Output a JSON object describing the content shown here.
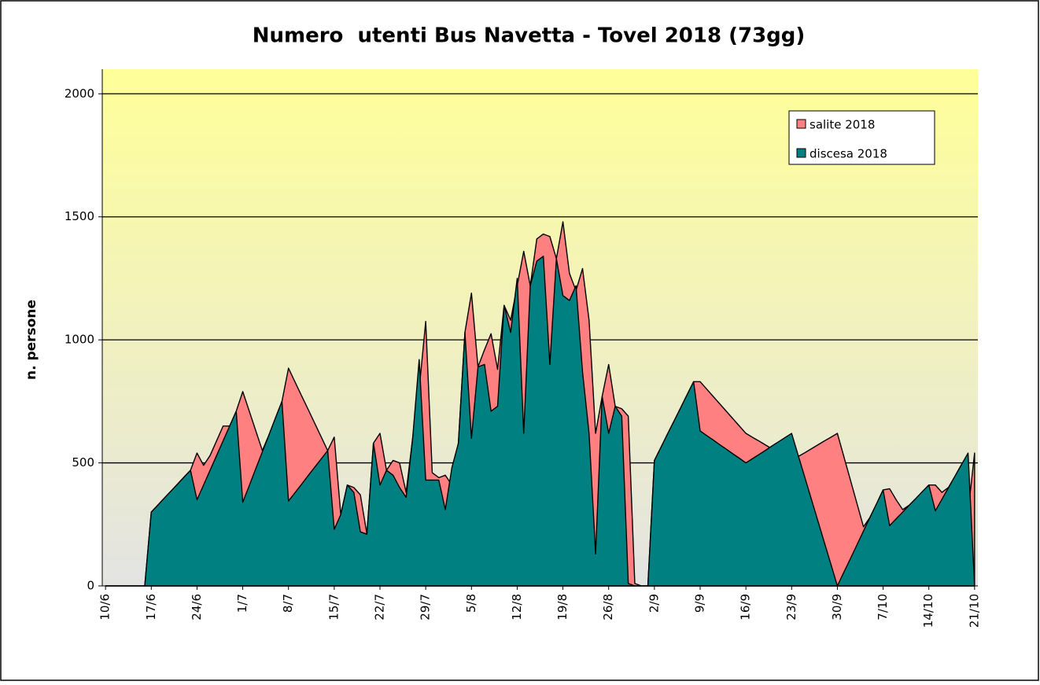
{
  "chart_data": {
    "type": "area",
    "title": "Numero  utenti Bus Navetta - Tovel 2018 (73gg)",
    "y_label": "n. persone",
    "categories": [
      "10/6",
      null,
      null,
      null,
      null,
      null,
      null,
      "17/6",
      null,
      null,
      null,
      null,
      null,
      null,
      "24/6",
      null,
      null,
      null,
      null,
      null,
      null,
      "1/7",
      null,
      null,
      null,
      null,
      null,
      null,
      "8/7",
      null,
      null,
      null,
      null,
      null,
      null,
      "15/7",
      null,
      null,
      null,
      null,
      null,
      null,
      "22/7",
      null,
      null,
      null,
      null,
      null,
      null,
      "29/7",
      null,
      null,
      null,
      null,
      null,
      null,
      "5/8",
      null,
      null,
      null,
      null,
      null,
      null,
      "12/8",
      null,
      null,
      null,
      null,
      null,
      null,
      "19/8",
      null,
      null,
      null,
      null,
      null,
      null,
      "26/8",
      null,
      null,
      null,
      null,
      null,
      null,
      "2/9",
      null,
      null,
      null,
      null,
      null,
      null,
      "9/9",
      null,
      null,
      null,
      null,
      null,
      null,
      "16/9",
      null,
      null,
      null,
      null,
      null,
      null,
      "23/9",
      null,
      null,
      null,
      null,
      null,
      null,
      "30/9",
      null,
      null,
      null,
      null,
      null,
      null,
      "7/10",
      null,
      null,
      null,
      null,
      null,
      null,
      "14/10",
      null,
      null,
      null,
      null,
      null,
      null,
      "21/10"
    ],
    "series": [
      {
        "name": "salite 2018",
        "color": "#ff8080",
        "values": [
          0,
          0,
          0,
          0,
          0,
          0,
          0,
          300,
          328,
          357,
          385,
          413,
          442,
          470,
          540,
          490,
          530,
          590,
          650,
          650,
          710,
          790,
          710,
          630,
          550,
          613,
          682,
          750,
          885,
          829,
          773,
          718,
          662,
          606,
          550,
          605,
          290,
          410,
          400,
          370,
          210,
          580,
          620,
          470,
          510,
          500,
          380,
          600,
          800,
          1075,
          460,
          440,
          450,
          410,
          580,
          1030,
          1190,
          890,
          960,
          1025,
          880,
          1140,
          1080,
          1220,
          1360,
          1220,
          1410,
          1430,
          1420,
          1330,
          1480,
          1270,
          1200,
          1290,
          1080,
          620,
          770,
          900,
          730,
          720,
          690,
          10,
          0,
          0,
          510,
          563,
          617,
          670,
          723,
          777,
          830,
          830,
          800,
          770,
          740,
          710,
          680,
          650,
          620,
          604,
          589,
          573,
          557,
          541,
          526,
          510,
          526,
          541,
          557,
          573,
          589,
          604,
          620,
          525,
          430,
          335,
          240,
          279,
          334,
          390,
          395,
          350,
          310,
          328,
          355,
          383,
          410,
          410,
          380,
          400,
          446,
          493,
          300,
          540
        ]
      },
      {
        "name": "discesa 2018",
        "color": "#008080",
        "values": [
          0,
          0,
          0,
          0,
          0,
          0,
          0,
          300,
          328,
          357,
          385,
          413,
          442,
          470,
          350,
          410,
          470,
          530,
          590,
          650,
          710,
          340,
          408,
          477,
          545,
          613,
          682,
          750,
          345,
          379,
          413,
          448,
          482,
          516,
          550,
          230,
          290,
          410,
          380,
          220,
          210,
          580,
          410,
          470,
          450,
          400,
          360,
          600,
          920,
          430,
          430,
          430,
          310,
          480,
          580,
          1030,
          600,
          890,
          900,
          710,
          730,
          1140,
          1030,
          1250,
          620,
          1220,
          1320,
          1340,
          900,
          1330,
          1180,
          1160,
          1220,
          870,
          620,
          130,
          770,
          620,
          730,
          690,
          10,
          0,
          0,
          0,
          510,
          563,
          617,
          670,
          723,
          777,
          830,
          630,
          611,
          593,
          574,
          556,
          537,
          519,
          500,
          517,
          534,
          551,
          569,
          586,
          603,
          620,
          531,
          443,
          354,
          266,
          177,
          89,
          0,
          56,
          111,
          167,
          223,
          279,
          334,
          390,
          245,
          273,
          300,
          328,
          355,
          383,
          410,
          305,
          352,
          399,
          446,
          493,
          540,
          0
        ]
      }
    ],
    "ylim": [
      0,
      2100
    ],
    "yticks": [
      0,
      500,
      1000,
      1500,
      2000
    ],
    "grid": true,
    "legend": "top-right"
  }
}
